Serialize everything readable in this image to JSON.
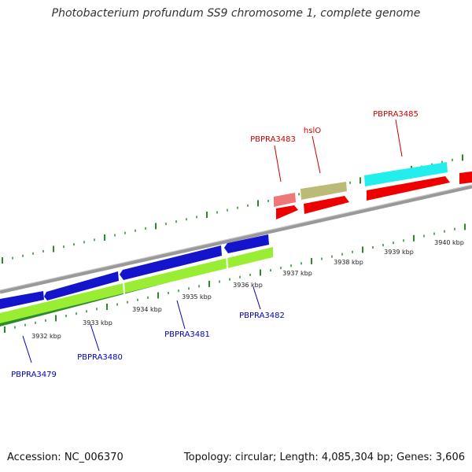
{
  "title": "Photobacterium profundum SS9 chromosome 1, complete genome",
  "footer": {
    "accession": "Accession: NC_006370",
    "summary": "Topology: circular; Length: 4,085,304 bp; Genes: 3,606"
  },
  "colors": {
    "backbone": "#888888",
    "tick": "#2a8a2a",
    "forward_label": "#cc0000",
    "reverse_label": "#0000bb",
    "reverse_track_1": "#1414cc",
    "reverse_track_2": "#99ee33",
    "reverse_track_3": "#2b8a2b",
    "forward_red": "#ee0000",
    "forward_pink": "#ee7777",
    "forward_olive": "#bbbb77",
    "forward_cyan": "#22eeee"
  },
  "kbp_labels": [
    "3932 kbp",
    "3933 kbp",
    "3934 kbp",
    "3935 kbp",
    "3936 kbp",
    "3937 kbp",
    "3938 kbp",
    "3939 kbp",
    "3940 kbp"
  ],
  "forward_gene_labels": [
    "PBPRA3483",
    "hslO",
    "PBPRA3485"
  ],
  "reverse_gene_labels": [
    "PBPRA3479",
    "PBPRA3480",
    "PBPRA3481",
    "PBPRA3482"
  ]
}
